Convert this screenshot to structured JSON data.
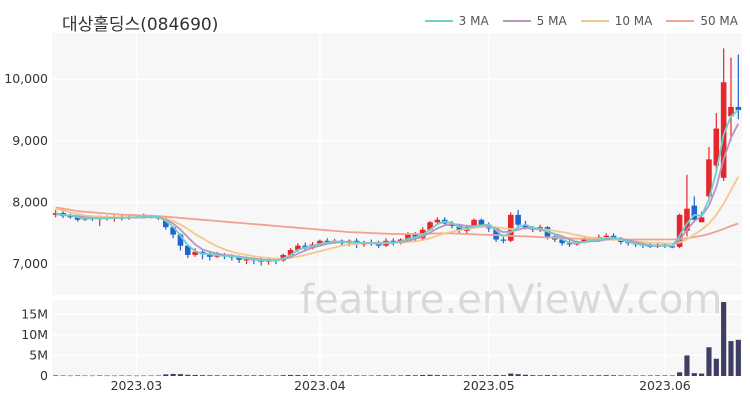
{
  "title": "대상홀딩스(084690)",
  "watermark": "feature.enViewV.com",
  "colors": {
    "up": "#e5262b",
    "down": "#1f65d0",
    "ma3": "#6fcfcb",
    "ma5": "#b597c2",
    "ma10": "#f2c98c",
    "ma50": "#f2a290",
    "volume": "#3e3d63",
    "panel": "#f7f7f7",
    "grid": "#ffffff"
  },
  "legend": [
    {
      "label": "3 MA",
      "key": "ma3"
    },
    {
      "label": "5 MA",
      "key": "ma5"
    },
    {
      "label": "10 MA",
      "key": "ma10"
    },
    {
      "label": "50 MA",
      "key": "ma50"
    }
  ],
  "chart_data": [
    {
      "type": "candlestick",
      "title": "대상홀딩스(084690)",
      "y_ticks": [
        "7,000",
        "8,000",
        "9,000",
        "10,000"
      ],
      "y_tick_values": [
        7000,
        8000,
        9000,
        10000
      ],
      "ylim": [
        6500,
        10750
      ],
      "x_ticks": [
        "2023.03",
        "2023.04",
        "2023.05",
        "2023.06"
      ],
      "x_tick_index": [
        11,
        36,
        59,
        83
      ],
      "series_names": [
        "3 MA",
        "5 MA",
        "10 MA",
        "50 MA"
      ],
      "candles": [
        [
          7800,
          7830,
          7880,
          7760
        ],
        [
          7830,
          7780,
          7900,
          7750
        ],
        [
          7780,
          7760,
          7820,
          7740
        ],
        [
          7760,
          7720,
          7790,
          7690
        ],
        [
          7720,
          7750,
          7770,
          7700
        ],
        [
          7750,
          7730,
          7780,
          7700
        ],
        [
          7730,
          7760,
          7790,
          7620
        ],
        [
          7760,
          7740,
          7790,
          7710
        ],
        [
          7740,
          7760,
          7790,
          7690
        ],
        [
          7760,
          7740,
          7800,
          7710
        ],
        [
          7740,
          7770,
          7800,
          7720
        ],
        [
          7770,
          7760,
          7800,
          7740
        ],
        [
          7760,
          7780,
          7820,
          7740
        ],
        [
          7780,
          7770,
          7800,
          7740
        ],
        [
          7770,
          7740,
          7790,
          7720
        ],
        [
          7740,
          7600,
          7760,
          7560
        ],
        [
          7600,
          7480,
          7620,
          7420
        ],
        [
          7480,
          7300,
          7500,
          7220
        ],
        [
          7300,
          7150,
          7320,
          7100
        ],
        [
          7150,
          7200,
          7260,
          7120
        ],
        [
          7200,
          7160,
          7220,
          7080
        ],
        [
          7160,
          7120,
          7200,
          7060
        ],
        [
          7120,
          7150,
          7200,
          7100
        ],
        [
          7150,
          7130,
          7180,
          7080
        ],
        [
          7130,
          7110,
          7160,
          7060
        ],
        [
          7110,
          7070,
          7140,
          7020
        ],
        [
          7070,
          7080,
          7120,
          7000
        ],
        [
          7080,
          7060,
          7110,
          7000
        ],
        [
          7060,
          7040,
          7100,
          6980
        ],
        [
          7040,
          7080,
          7110,
          6990
        ],
        [
          7080,
          7060,
          7100,
          7000
        ],
        [
          7060,
          7150,
          7170,
          7040
        ],
        [
          7150,
          7230,
          7260,
          7130
        ],
        [
          7230,
          7300,
          7340,
          7200
        ],
        [
          7300,
          7260,
          7350,
          7220
        ],
        [
          7260,
          7320,
          7360,
          7240
        ],
        [
          7320,
          7380,
          7400,
          7290
        ],
        [
          7380,
          7360,
          7420,
          7330
        ],
        [
          7360,
          7380,
          7410,
          7330
        ],
        [
          7380,
          7340,
          7400,
          7300
        ],
        [
          7340,
          7380,
          7400,
          7290
        ],
        [
          7380,
          7320,
          7420,
          7260
        ],
        [
          7320,
          7360,
          7380,
          7280
        ],
        [
          7360,
          7340,
          7400,
          7300
        ],
        [
          7340,
          7300,
          7380,
          7260
        ],
        [
          7300,
          7380,
          7420,
          7280
        ],
        [
          7380,
          7340,
          7420,
          7300
        ],
        [
          7340,
          7400,
          7420,
          7320
        ],
        [
          7400,
          7480,
          7520,
          7380
        ],
        [
          7480,
          7420,
          7520,
          7380
        ],
        [
          7420,
          7560,
          7600,
          7400
        ],
        [
          7560,
          7680,
          7700,
          7540
        ],
        [
          7680,
          7720,
          7760,
          7640
        ],
        [
          7720,
          7660,
          7760,
          7620
        ],
        [
          7660,
          7620,
          7700,
          7580
        ],
        [
          7620,
          7540,
          7640,
          7500
        ],
        [
          7540,
          7600,
          7640,
          7500
        ],
        [
          7600,
          7720,
          7740,
          7580
        ],
        [
          7720,
          7640,
          7740,
          7600
        ],
        [
          7640,
          7580,
          7680,
          7520
        ],
        [
          7580,
          7400,
          7600,
          7360
        ],
        [
          7400,
          7380,
          7440,
          7340
        ],
        [
          7380,
          7800,
          7840,
          7360
        ],
        [
          7800,
          7640,
          7880,
          7600
        ],
        [
          7640,
          7580,
          7700,
          7560
        ],
        [
          7580,
          7560,
          7620,
          7520
        ],
        [
          7560,
          7600,
          7640,
          7520
        ],
        [
          7600,
          7450,
          7620,
          7400
        ],
        [
          7450,
          7400,
          7480,
          7360
        ],
        [
          7400,
          7340,
          7420,
          7300
        ],
        [
          7340,
          7320,
          7380,
          7280
        ],
        [
          7320,
          7360,
          7380,
          7300
        ],
        [
          7360,
          7420,
          7440,
          7340
        ],
        [
          7420,
          7380,
          7440,
          7360
        ],
        [
          7380,
          7440,
          7480,
          7360
        ],
        [
          7440,
          7460,
          7500,
          7420
        ],
        [
          7460,
          7400,
          7500,
          7380
        ],
        [
          7400,
          7360,
          7440,
          7320
        ],
        [
          7360,
          7340,
          7380,
          7300
        ],
        [
          7340,
          7320,
          7360,
          7280
        ],
        [
          7320,
          7300,
          7340,
          7260
        ],
        [
          7300,
          7280,
          7340,
          7260
        ],
        [
          7280,
          7320,
          7360,
          7260
        ],
        [
          7320,
          7290,
          7340,
          7260
        ],
        [
          7290,
          7280,
          7310,
          7260
        ],
        [
          7280,
          7800,
          7820,
          7260
        ],
        [
          7540,
          7900,
          8450,
          7450
        ],
        [
          7950,
          7720,
          8100,
          7680
        ],
        [
          7680,
          7760,
          7850,
          7680
        ],
        [
          8100,
          8700,
          8900,
          8050
        ],
        [
          8600,
          9200,
          9450,
          8500
        ],
        [
          8400,
          9950,
          10500,
          8350
        ],
        [
          9400,
          9550,
          10350,
          9000
        ],
        [
          9550,
          9500,
          10400,
          9350
        ]
      ],
      "ma3": [
        7810,
        7800,
        7790,
        7760,
        7740,
        7740,
        7745,
        7745,
        7750,
        7750,
        7755,
        7760,
        7765,
        7770,
        7765,
        7700,
        7610,
        7460,
        7310,
        7210,
        7170,
        7160,
        7145,
        7135,
        7130,
        7110,
        7090,
        7075,
        7060,
        7060,
        7060,
        7090,
        7150,
        7230,
        7270,
        7300,
        7330,
        7350,
        7370,
        7360,
        7360,
        7350,
        7340,
        7340,
        7330,
        7340,
        7350,
        7370,
        7410,
        7440,
        7480,
        7560,
        7650,
        7690,
        7670,
        7600,
        7580,
        7610,
        7630,
        7640,
        7550,
        7450,
        7520,
        7600,
        7640,
        7590,
        7570,
        7530,
        7480,
        7400,
        7350,
        7340,
        7360,
        7390,
        7400,
        7420,
        7430,
        7400,
        7360,
        7330,
        7310,
        7300,
        7300,
        7300,
        7300,
        7460,
        7660,
        7800,
        7790,
        8050,
        8500,
        9100,
        9400,
        9500
      ],
      "ma5": [
        7810,
        7800,
        7790,
        7780,
        7760,
        7750,
        7745,
        7745,
        7750,
        7750,
        7755,
        7755,
        7760,
        7765,
        7765,
        7720,
        7660,
        7560,
        7440,
        7320,
        7240,
        7200,
        7170,
        7150,
        7140,
        7120,
        7105,
        7090,
        7075,
        7065,
        7060,
        7080,
        7120,
        7170,
        7220,
        7270,
        7300,
        7330,
        7350,
        7360,
        7360,
        7350,
        7345,
        7340,
        7340,
        7340,
        7345,
        7360,
        7380,
        7410,
        7450,
        7510,
        7580,
        7630,
        7650,
        7640,
        7620,
        7620,
        7630,
        7620,
        7570,
        7520,
        7530,
        7560,
        7590,
        7580,
        7560,
        7530,
        7490,
        7450,
        7400,
        7360,
        7360,
        7370,
        7380,
        7400,
        7420,
        7410,
        7390,
        7360,
        7330,
        7310,
        7300,
        7300,
        7300,
        7390,
        7560,
        7700,
        7780,
        7950,
        8250,
        8700,
        9050,
        9280
      ],
      "ma10": [
        7900,
        7870,
        7840,
        7810,
        7790,
        7780,
        7770,
        7765,
        7760,
        7760,
        7760,
        7760,
        7760,
        7760,
        7760,
        7740,
        7700,
        7640,
        7570,
        7490,
        7420,
        7350,
        7290,
        7240,
        7200,
        7170,
        7150,
        7130,
        7110,
        7100,
        7090,
        7090,
        7100,
        7120,
        7150,
        7180,
        7210,
        7240,
        7270,
        7300,
        7320,
        7330,
        7340,
        7345,
        7350,
        7350,
        7350,
        7350,
        7360,
        7370,
        7390,
        7420,
        7460,
        7500,
        7530,
        7550,
        7570,
        7590,
        7600,
        7610,
        7600,
        7580,
        7570,
        7570,
        7580,
        7580,
        7570,
        7560,
        7540,
        7520,
        7500,
        7470,
        7450,
        7430,
        7420,
        7410,
        7400,
        7390,
        7380,
        7370,
        7360,
        7350,
        7345,
        7340,
        7335,
        7350,
        7400,
        7480,
        7560,
        7660,
        7800,
        7980,
        8200,
        8420
      ],
      "ma50": [
        7920,
        7900,
        7880,
        7860,
        7850,
        7840,
        7830,
        7820,
        7810,
        7805,
        7800,
        7795,
        7790,
        7785,
        7780,
        7770,
        7760,
        7750,
        7740,
        7730,
        7720,
        7710,
        7700,
        7690,
        7680,
        7670,
        7660,
        7650,
        7640,
        7630,
        7620,
        7610,
        7600,
        7590,
        7580,
        7570,
        7560,
        7550,
        7540,
        7530,
        7520,
        7515,
        7510,
        7505,
        7500,
        7495,
        7490,
        7490,
        7490,
        7490,
        7490,
        7495,
        7500,
        7500,
        7500,
        7495,
        7490,
        7485,
        7480,
        7475,
        7470,
        7465,
        7460,
        7455,
        7450,
        7445,
        7440,
        7435,
        7430,
        7425,
        7420,
        7415,
        7410,
        7405,
        7400,
        7400,
        7400,
        7400,
        7400,
        7400,
        7400,
        7400,
        7400,
        7400,
        7400,
        7410,
        7420,
        7440,
        7460,
        7490,
        7530,
        7570,
        7620,
        7660
      ],
      "volume_ticks": [
        "0",
        "5M",
        "10M",
        "15M"
      ],
      "volume_tick_values": [
        0,
        5000000,
        10000000,
        15000000
      ],
      "volume_ylim": [
        0,
        18500000
      ],
      "volume": [
        150000,
        120000,
        100000,
        130000,
        110000,
        100000,
        140000,
        110000,
        100000,
        120000,
        110000,
        90000,
        100000,
        110000,
        120000,
        400000,
        500000,
        450000,
        300000,
        250000,
        200000,
        180000,
        160000,
        150000,
        170000,
        180000,
        150000,
        160000,
        170000,
        150000,
        140000,
        200000,
        250000,
        220000,
        200000,
        180000,
        160000,
        150000,
        140000,
        130000,
        140000,
        150000,
        140000,
        130000,
        150000,
        160000,
        140000,
        150000,
        200000,
        180000,
        250000,
        300000,
        220000,
        200000,
        180000,
        170000,
        160000,
        220000,
        200000,
        180000,
        250000,
        200000,
        600000,
        450000,
        300000,
        200000,
        180000,
        220000,
        200000,
        180000,
        160000,
        150000,
        170000,
        160000,
        180000,
        200000,
        180000,
        160000,
        150000,
        140000,
        130000,
        140000,
        150000,
        140000,
        130000,
        900000,
        5000000,
        700000,
        600000,
        7000000,
        4200000,
        18000000,
        8500000,
        8800000
      ]
    }
  ]
}
